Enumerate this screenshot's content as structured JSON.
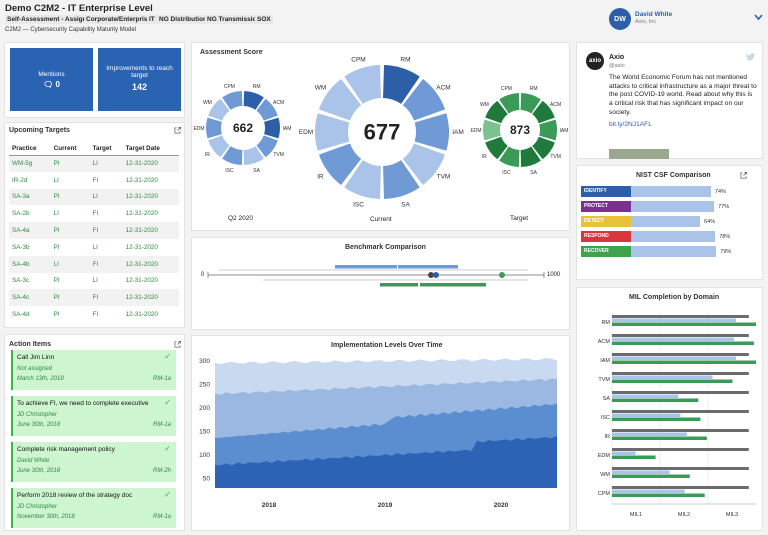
{
  "header": {
    "title": "Demo C2M2 - IT Enterprise Level",
    "tags": [
      "Self-Assessment - Assigned",
      "Corporate/Enterprise",
      "IT",
      "NG Distribution",
      "NG Transmission",
      "SOX"
    ],
    "subtitle": "C2M2 — Cybersecurity Capability Maturity Model",
    "user_initials": "DW",
    "user_name": "David White",
    "user_org": "Axio, Inc"
  },
  "mentions": {
    "label": "Mentions",
    "count": "0"
  },
  "improvements": {
    "label": "Improvements to reach target",
    "count": "142"
  },
  "upcoming": {
    "title": "Upcoming Targets",
    "columns": [
      "Practice",
      "Current",
      "Target",
      "Target Date"
    ],
    "rows": [
      [
        "WM-5g",
        "PI",
        "LI",
        "12-31-2020"
      ],
      [
        "IR-2d",
        "LI",
        "FI",
        "12-31-2020"
      ],
      [
        "SA-3a",
        "PI",
        "LI",
        "12-31-2020"
      ],
      [
        "SA-2b",
        "LI",
        "FI",
        "12-31-2020"
      ],
      [
        "SA-4a",
        "PI",
        "FI",
        "12-31-2020"
      ],
      [
        "SA-3b",
        "PI",
        "LI",
        "12-31-2020"
      ],
      [
        "SA-4b",
        "LI",
        "FI",
        "12-31-2020"
      ],
      [
        "SA-3c",
        "PI",
        "LI",
        "12-31-2020"
      ],
      [
        "SA-4c",
        "PI",
        "FI",
        "12-31-2020"
      ],
      [
        "SA-4d",
        "PI",
        "FI",
        "12-31-2020"
      ]
    ]
  },
  "actions": {
    "title": "Action Items",
    "items": [
      {
        "title": "Call Jim Linn",
        "assignee": "Not assigned",
        "date": "March 13th, 2018",
        "ref": "RM-1a"
      },
      {
        "title": "To achieve FI, we need to complete executive",
        "assignee": "JD Christopher",
        "date": "June 30th, 2018",
        "ref": "RM-1a"
      },
      {
        "title": "Complete risk management policy",
        "assignee": "David White",
        "date": "June 30th, 2018",
        "ref": "RM-2h"
      },
      {
        "title": "Perform 2018 review of the strategy doc",
        "assignee": "JD Christopher",
        "date": "November 30th, 2018",
        "ref": "RM-1a"
      }
    ]
  },
  "assessment": {
    "title": "Assessment Score",
    "domains": [
      "RM",
      "ACM",
      "IAM",
      "TVM",
      "SA",
      "ISC",
      "IR",
      "EDM",
      "WM",
      "CPM"
    ],
    "colors": {
      "light": "#a9c4e8",
      "mid": "#6f9ad6",
      "dark": "#2d5fa8",
      "g1": "#1f7a3c",
      "g2": "#3a9a57",
      "g3": "#7cc28f"
    },
    "q2": {
      "score": "662",
      "label": "Q2 2020"
    },
    "current": {
      "score": "677",
      "label": "Current"
    },
    "target": {
      "score": "873",
      "label": "Target"
    }
  },
  "benchmark": {
    "title": "Benchmark Comparison",
    "min": "0",
    "max": "1000"
  },
  "impl": {
    "title": "Implementation Levels Over Time",
    "yticks": [
      "300",
      "250",
      "200",
      "150",
      "100",
      "50"
    ],
    "xticks": [
      "2018",
      "2019",
      "2020"
    ]
  },
  "tweet": {
    "name": "Axio",
    "handle": "@axio",
    "text": "The World Economic Forum has not mentioned attacks to critical infrastructure as a major threat to the post COVID-19 world. Read about why this is a critical risk that has significant impact on our society.",
    "link": "bit.ly/2NJ1AFL"
  },
  "nist": {
    "title": "NIST CSF Comparison",
    "rows": [
      {
        "label": "IDENTIFY",
        "pct": "74%",
        "value": 74,
        "color": "#2d5fa8"
      },
      {
        "label": "PROTECT",
        "pct": "77%",
        "value": 77,
        "color": "#7b2f8f"
      },
      {
        "label": "DETECT",
        "pct": "64%",
        "value": 64,
        "color": "#e8c33a"
      },
      {
        "label": "RESPOND",
        "pct": "78%",
        "value": 78,
        "color": "#d9363e"
      },
      {
        "label": "RECOVER",
        "pct": "79%",
        "value": 79,
        "color": "#3fa34d"
      }
    ]
  },
  "mil": {
    "title": "MIL Completion by Domain",
    "domains": [
      "RM",
      "ACM",
      "IAM",
      "TVM",
      "SA",
      "ISC",
      "IR",
      "EDM",
      "WM",
      "CPM"
    ],
    "xticks": [
      "MIL1",
      "MIL2",
      "MIL3"
    ]
  }
}
